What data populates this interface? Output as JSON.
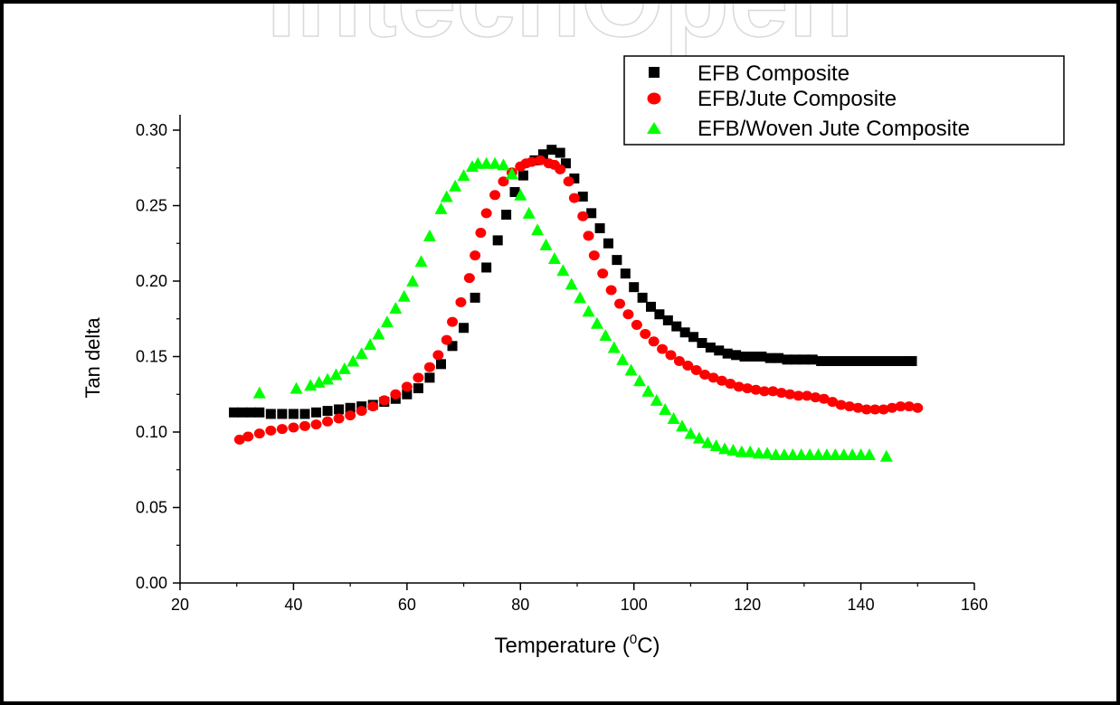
{
  "watermark": "IntechOpen",
  "chart_data": {
    "type": "scatter",
    "title": "",
    "xlabel_prefix": "Temperature (",
    "xlabel_sup": "0",
    "xlabel_suffix": "C)",
    "ylabel": "Tan delta",
    "xlim": [
      20,
      160
    ],
    "ylim": [
      0.0,
      0.31
    ],
    "xticks": [
      20,
      40,
      60,
      80,
      100,
      120,
      140,
      160
    ],
    "xtick_labels": [
      "20",
      "40",
      "60",
      "80",
      "100",
      "120",
      "140",
      "160"
    ],
    "yticks": [
      0.0,
      0.05,
      0.1,
      0.15,
      0.2,
      0.25,
      0.3
    ],
    "ytick_labels": [
      "0.00",
      "0.05",
      "0.10",
      "0.15",
      "0.20",
      "0.25",
      "0.30"
    ],
    "grid": false,
    "legend_position": "top-right",
    "series": [
      {
        "name": "EFB Composite",
        "marker": "square",
        "color": "#000000",
        "points": [
          [
            29.5,
            0.113
          ],
          [
            31,
            0.113
          ],
          [
            32.5,
            0.113
          ],
          [
            34,
            0.113
          ],
          [
            36,
            0.112
          ],
          [
            38,
            0.112
          ],
          [
            40,
            0.112
          ],
          [
            42,
            0.112
          ],
          [
            44,
            0.113
          ],
          [
            46,
            0.114
          ],
          [
            48,
            0.115
          ],
          [
            50,
            0.116
          ],
          [
            52,
            0.117
          ],
          [
            54,
            0.118
          ],
          [
            56,
            0.12
          ],
          [
            58,
            0.122
          ],
          [
            60,
            0.125
          ],
          [
            62,
            0.129
          ],
          [
            64,
            0.136
          ],
          [
            66,
            0.145
          ],
          [
            68,
            0.157
          ],
          [
            70,
            0.169
          ],
          [
            72,
            0.189
          ],
          [
            74,
            0.209
          ],
          [
            76,
            0.227
          ],
          [
            77.5,
            0.244
          ],
          [
            79,
            0.259
          ],
          [
            80.5,
            0.27
          ],
          [
            82.5,
            0.28
          ],
          [
            84,
            0.284
          ],
          [
            85.5,
            0.287
          ],
          [
            87,
            0.285
          ],
          [
            88,
            0.278
          ],
          [
            89.5,
            0.268
          ],
          [
            91,
            0.256
          ],
          [
            92.5,
            0.245
          ],
          [
            94,
            0.235
          ],
          [
            95.5,
            0.225
          ],
          [
            97,
            0.214
          ],
          [
            98.5,
            0.205
          ],
          [
            100,
            0.196
          ],
          [
            101.5,
            0.189
          ],
          [
            103,
            0.183
          ],
          [
            104.5,
            0.178
          ],
          [
            106,
            0.174
          ],
          [
            107.5,
            0.17
          ],
          [
            109,
            0.166
          ],
          [
            110.5,
            0.163
          ],
          [
            112,
            0.159
          ],
          [
            113.5,
            0.156
          ],
          [
            115,
            0.154
          ],
          [
            116.5,
            0.152
          ],
          [
            118,
            0.151
          ],
          [
            119.5,
            0.15
          ],
          [
            121,
            0.15
          ],
          [
            122.5,
            0.15
          ],
          [
            124,
            0.149
          ],
          [
            125.5,
            0.149
          ],
          [
            127,
            0.148
          ],
          [
            128.5,
            0.148
          ],
          [
            130,
            0.148
          ],
          [
            131.5,
            0.148
          ],
          [
            133,
            0.147
          ],
          [
            134.5,
            0.147
          ],
          [
            136,
            0.147
          ],
          [
            137.5,
            0.147
          ],
          [
            139,
            0.147
          ],
          [
            140.5,
            0.147
          ],
          [
            142,
            0.147
          ],
          [
            143.5,
            0.147
          ],
          [
            145,
            0.147
          ],
          [
            146.5,
            0.147
          ],
          [
            148,
            0.147
          ],
          [
            149,
            0.147
          ]
        ]
      },
      {
        "name": "EFB/Jute Composite",
        "marker": "circle",
        "color": "#ff0000",
        "points": [
          [
            30.5,
            0.095
          ],
          [
            32,
            0.097
          ],
          [
            34,
            0.099
          ],
          [
            36,
            0.101
          ],
          [
            38,
            0.102
          ],
          [
            40,
            0.103
          ],
          [
            42,
            0.104
          ],
          [
            44,
            0.105
          ],
          [
            46,
            0.107
          ],
          [
            48,
            0.109
          ],
          [
            50,
            0.111
          ],
          [
            52,
            0.114
          ],
          [
            54,
            0.117
          ],
          [
            56,
            0.121
          ],
          [
            58,
            0.125
          ],
          [
            60,
            0.13
          ],
          [
            62,
            0.136
          ],
          [
            64,
            0.143
          ],
          [
            65.5,
            0.151
          ],
          [
            67,
            0.161
          ],
          [
            68,
            0.173
          ],
          [
            69.5,
            0.186
          ],
          [
            71,
            0.202
          ],
          [
            72,
            0.217
          ],
          [
            73,
            0.232
          ],
          [
            74,
            0.245
          ],
          [
            75.5,
            0.257
          ],
          [
            77,
            0.266
          ],
          [
            78.5,
            0.272
          ],
          [
            80,
            0.276
          ],
          [
            81,
            0.278
          ],
          [
            82,
            0.279
          ],
          [
            83.5,
            0.28
          ],
          [
            85,
            0.278
          ],
          [
            86,
            0.277
          ],
          [
            87,
            0.274
          ],
          [
            88.5,
            0.266
          ],
          [
            89.5,
            0.255
          ],
          [
            91,
            0.243
          ],
          [
            92,
            0.23
          ],
          [
            93,
            0.217
          ],
          [
            94.5,
            0.205
          ],
          [
            96,
            0.194
          ],
          [
            97.5,
            0.185
          ],
          [
            99,
            0.178
          ],
          [
            100.5,
            0.171
          ],
          [
            102,
            0.165
          ],
          [
            103.5,
            0.16
          ],
          [
            105,
            0.155
          ],
          [
            106.5,
            0.151
          ],
          [
            108,
            0.147
          ],
          [
            109.5,
            0.144
          ],
          [
            111,
            0.141
          ],
          [
            112.5,
            0.138
          ],
          [
            114,
            0.136
          ],
          [
            115.5,
            0.134
          ],
          [
            117,
            0.132
          ],
          [
            118.5,
            0.13
          ],
          [
            120,
            0.129
          ],
          [
            121.5,
            0.128
          ],
          [
            123,
            0.127
          ],
          [
            124.5,
            0.127
          ],
          [
            126,
            0.126
          ],
          [
            127.5,
            0.125
          ],
          [
            129,
            0.124
          ],
          [
            130.5,
            0.124
          ],
          [
            132,
            0.123
          ],
          [
            133.5,
            0.122
          ],
          [
            135,
            0.12
          ],
          [
            136.5,
            0.118
          ],
          [
            138,
            0.117
          ],
          [
            139.5,
            0.116
          ],
          [
            141,
            0.115
          ],
          [
            142.5,
            0.115
          ],
          [
            144,
            0.115
          ],
          [
            145.5,
            0.116
          ],
          [
            147,
            0.117
          ],
          [
            148.5,
            0.117
          ],
          [
            150,
            0.116
          ]
        ]
      },
      {
        "name": "EFB/Woven Jute Composite",
        "marker": "triangle",
        "color": "#00ff00",
        "points": [
          [
            34,
            0.126
          ],
          [
            40.5,
            0.129
          ],
          [
            43,
            0.131
          ],
          [
            44.5,
            0.133
          ],
          [
            46,
            0.135
          ],
          [
            47.5,
            0.138
          ],
          [
            49,
            0.142
          ],
          [
            50.5,
            0.147
          ],
          [
            52,
            0.152
          ],
          [
            53.5,
            0.158
          ],
          [
            55,
            0.165
          ],
          [
            56.5,
            0.173
          ],
          [
            58,
            0.182
          ],
          [
            59.5,
            0.19
          ],
          [
            61,
            0.2
          ],
          [
            62.5,
            0.213
          ],
          [
            64,
            0.23
          ],
          [
            66,
            0.248
          ],
          [
            67,
            0.256
          ],
          [
            68.5,
            0.263
          ],
          [
            70,
            0.27
          ],
          [
            71.5,
            0.276
          ],
          [
            72.5,
            0.278
          ],
          [
            74,
            0.278
          ],
          [
            75.5,
            0.278
          ],
          [
            77,
            0.277
          ],
          [
            78.5,
            0.271
          ],
          [
            80,
            0.257
          ],
          [
            81.5,
            0.245
          ],
          [
            83,
            0.234
          ],
          [
            84.5,
            0.224
          ],
          [
            86,
            0.215
          ],
          [
            87.5,
            0.207
          ],
          [
            89,
            0.198
          ],
          [
            90.5,
            0.189
          ],
          [
            92,
            0.18
          ],
          [
            93.5,
            0.172
          ],
          [
            95,
            0.164
          ],
          [
            96.5,
            0.156
          ],
          [
            98,
            0.148
          ],
          [
            99.5,
            0.141
          ],
          [
            101,
            0.134
          ],
          [
            102.5,
            0.127
          ],
          [
            104,
            0.121
          ],
          [
            105.5,
            0.115
          ],
          [
            107,
            0.109
          ],
          [
            108.5,
            0.104
          ],
          [
            110,
            0.099
          ],
          [
            111.5,
            0.096
          ],
          [
            113,
            0.093
          ],
          [
            114.5,
            0.091
          ],
          [
            116,
            0.089
          ],
          [
            117.5,
            0.088
          ],
          [
            119,
            0.087
          ],
          [
            120.5,
            0.087
          ],
          [
            122,
            0.086
          ],
          [
            123.5,
            0.086
          ],
          [
            125,
            0.085
          ],
          [
            126.5,
            0.085
          ],
          [
            128,
            0.085
          ],
          [
            129.5,
            0.085
          ],
          [
            131,
            0.085
          ],
          [
            132.5,
            0.085
          ],
          [
            134,
            0.085
          ],
          [
            135.5,
            0.085
          ],
          [
            137,
            0.085
          ],
          [
            138.5,
            0.085
          ],
          [
            140,
            0.085
          ],
          [
            141.5,
            0.085
          ],
          [
            144.5,
            0.084
          ]
        ]
      }
    ]
  }
}
